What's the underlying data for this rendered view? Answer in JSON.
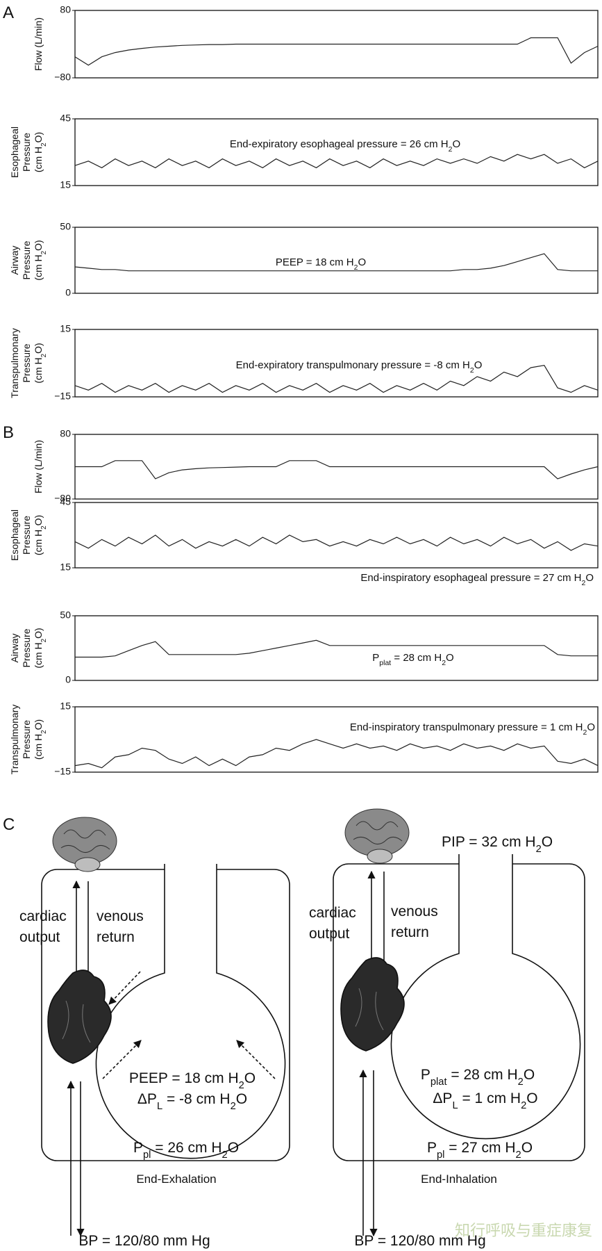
{
  "panel_labels": [
    "A",
    "B",
    "C"
  ],
  "chart_data": [
    {
      "type": "line",
      "ylabel": [
        "Flow (L/min)"
      ],
      "ylim": [
        -80,
        80
      ],
      "yticks": [
        80,
        {
          "value": -80,
          "label": "−80"
        }
      ],
      "color": "#222",
      "values": [
        -30,
        -50,
        -30,
        -20,
        -14,
        -10,
        -7,
        -5,
        -3,
        -2,
        -1,
        -1,
        0,
        0,
        0,
        0,
        0,
        0,
        0,
        0,
        0,
        0,
        0,
        0,
        0,
        0,
        0,
        0,
        0,
        0,
        0,
        0,
        0,
        0,
        15,
        15,
        15,
        -45,
        -20,
        -5
      ]
    },
    {
      "type": "line",
      "ylabel": [
        "Esophageal",
        "Pressure",
        [
          "(cm H",
          "2",
          "O)"
        ]
      ],
      "ylim": [
        15,
        45
      ],
      "yticks": [
        45,
        15
      ],
      "color": "#222",
      "annotation": [
        "End-expiratory esophageal pressure = 26 cm H",
        "2",
        "O"
      ],
      "values": [
        24,
        26,
        23,
        27,
        24,
        26,
        23,
        27,
        24,
        26,
        23,
        27,
        24,
        26,
        23,
        27,
        24,
        26,
        23,
        27,
        24,
        26,
        23,
        27,
        24,
        26,
        24,
        27,
        25,
        27,
        25,
        28,
        26,
        29,
        27,
        29,
        25,
        27,
        23,
        26
      ]
    },
    {
      "type": "line",
      "ylabel": [
        "Airway",
        "Pressure",
        [
          "(cm H",
          "2",
          "O)"
        ]
      ],
      "ylim": [
        0,
        50
      ],
      "yticks": [
        50,
        0
      ],
      "color": "#222",
      "annotation": [
        "PEEP = 18 cm H",
        "2",
        "O"
      ],
      "values": [
        20,
        19,
        18,
        18,
        17,
        17,
        17,
        17,
        17,
        17,
        17,
        17,
        17,
        17,
        17,
        17,
        17,
        17,
        17,
        17,
        17,
        17,
        17,
        17,
        17,
        17,
        17,
        17,
        17,
        18,
        18,
        19,
        21,
        24,
        27,
        30,
        18,
        17,
        17,
        17
      ]
    },
    {
      "type": "line",
      "ylabel": [
        "Transpulmonary",
        "Pressure",
        [
          "(cm H",
          "2",
          "O)"
        ]
      ],
      "ylim": [
        -15,
        15
      ],
      "yticks": [
        15,
        {
          "value": -15,
          "label": "−15"
        }
      ],
      "color": "#222",
      "annotation": [
        "End-expiratory transpulmonary pressure = -8 cm H",
        "2",
        "O"
      ],
      "values": [
        -10,
        -12,
        -9,
        -13,
        -10,
        -12,
        -9,
        -13,
        -10,
        -12,
        -9,
        -13,
        -10,
        -12,
        -9,
        -13,
        -10,
        -12,
        -9,
        -13,
        -10,
        -12,
        -9,
        -13,
        -10,
        -12,
        -9,
        -12,
        -8,
        -10,
        -6,
        -8,
        -4,
        -6,
        -2,
        -1,
        -11,
        -13,
        -10,
        -12
      ]
    },
    {
      "type": "line",
      "ylabel": [
        "Flow (L/min)"
      ],
      "ylim": [
        -80,
        80
      ],
      "yticks": [
        80,
        {
          "value": -80,
          "label": "−80"
        }
      ],
      "color": "#222",
      "values": [
        0,
        0,
        0,
        15,
        15,
        15,
        -30,
        -15,
        -8,
        -5,
        -3,
        -2,
        -1,
        0,
        0,
        0,
        15,
        15,
        15,
        0,
        0,
        0,
        0,
        0,
        0,
        0,
        0,
        0,
        0,
        0,
        0,
        0,
        0,
        0,
        0,
        0,
        -30,
        -18,
        -8,
        0
      ]
    },
    {
      "type": "line",
      "ylabel": [
        "Esophageal",
        "Pressure",
        [
          "(cm H",
          "2",
          "O)"
        ]
      ],
      "ylim": [
        15,
        45
      ],
      "yticks": [
        45,
        15
      ],
      "color": "#222",
      "annotation": [
        "End-inspiratory esophageal pressure = 27 cm H",
        "2",
        "O"
      ],
      "values": [
        27,
        24,
        28,
        25,
        29,
        26,
        30,
        25,
        28,
        24,
        27,
        25,
        28,
        25,
        29,
        26,
        30,
        27,
        28,
        25,
        27,
        25,
        28,
        26,
        29,
        26,
        28,
        25,
        29,
        26,
        28,
        25,
        29,
        26,
        28,
        24,
        27,
        23,
        26,
        25
      ]
    },
    {
      "type": "line",
      "ylabel": [
        "Airway",
        "Pressure",
        [
          "(cm H",
          "2",
          "O)"
        ]
      ],
      "ylim": [
        0,
        50
      ],
      "yticks": [
        50,
        0
      ],
      "color": "#222",
      "annotation": [
        "P",
        "plat",
        " = 28 cm H",
        "2",
        "O"
      ],
      "values": [
        18,
        18,
        18,
        19,
        23,
        27,
        30,
        20,
        20,
        20,
        20,
        20,
        20,
        21,
        23,
        25,
        27,
        29,
        31,
        27,
        27,
        27,
        27,
        27,
        27,
        27,
        27,
        27,
        27,
        27,
        27,
        27,
        27,
        27,
        27,
        27,
        20,
        19,
        19,
        19
      ]
    },
    {
      "type": "line",
      "ylabel": [
        "Transpulmonary",
        "Pressure",
        [
          "(cm H",
          "2",
          "O)"
        ]
      ],
      "ylim": [
        -15,
        15
      ],
      "yticks": [
        15,
        {
          "value": -15,
          "label": "−15"
        }
      ],
      "color": "#222",
      "annotation": [
        "End-inspiratory transpulmonary pressure = 1 cm H",
        "2",
        "O"
      ],
      "values": [
        -12,
        -11,
        -13,
        -8,
        -7,
        -4,
        -5,
        -9,
        -11,
        -8,
        -12,
        -9,
        -12,
        -8,
        -7,
        -4,
        -5,
        -2,
        0,
        -2,
        -4,
        -2,
        -4,
        -3,
        -5,
        -2,
        -4,
        -3,
        -5,
        -2,
        -4,
        -3,
        -5,
        -2,
        -4,
        -3,
        -10,
        -11,
        -9,
        -12
      ]
    }
  ],
  "diagram": {
    "left": {
      "cardiac_output": [
        "cardiac",
        "output"
      ],
      "venous_return": [
        "venous",
        "return"
      ],
      "peep": [
        "PEEP = 18 cm H",
        "2",
        "O"
      ],
      "delta_pl": [
        "ΔP",
        "L",
        " = -8 cm H",
        "2",
        "O"
      ],
      "ppl": [
        "P",
        "pl",
        " = 26 cm H",
        "2",
        "O"
      ],
      "phase": "End-Exhalation",
      "bp": "BP = 120/80 mm Hg"
    },
    "right": {
      "pip": [
        "PIP = 32 cm H",
        "2",
        "O"
      ],
      "cardiac_output": [
        "cardiac",
        "output"
      ],
      "venous_return": [
        "venous",
        "return"
      ],
      "pplat": [
        "P",
        "plat",
        " = 28 cm H",
        "2",
        "O"
      ],
      "delta_pl": [
        "ΔP",
        "L",
        " = 1 cm H",
        "2",
        "O"
      ],
      "ppl": [
        "P",
        "pl",
        " = 27 cm H",
        "2",
        "O"
      ],
      "phase": "End-Inhalation",
      "bp": "BP = 120/80 mm Hg"
    },
    "watermark": "知行呼吸与重症康复"
  }
}
